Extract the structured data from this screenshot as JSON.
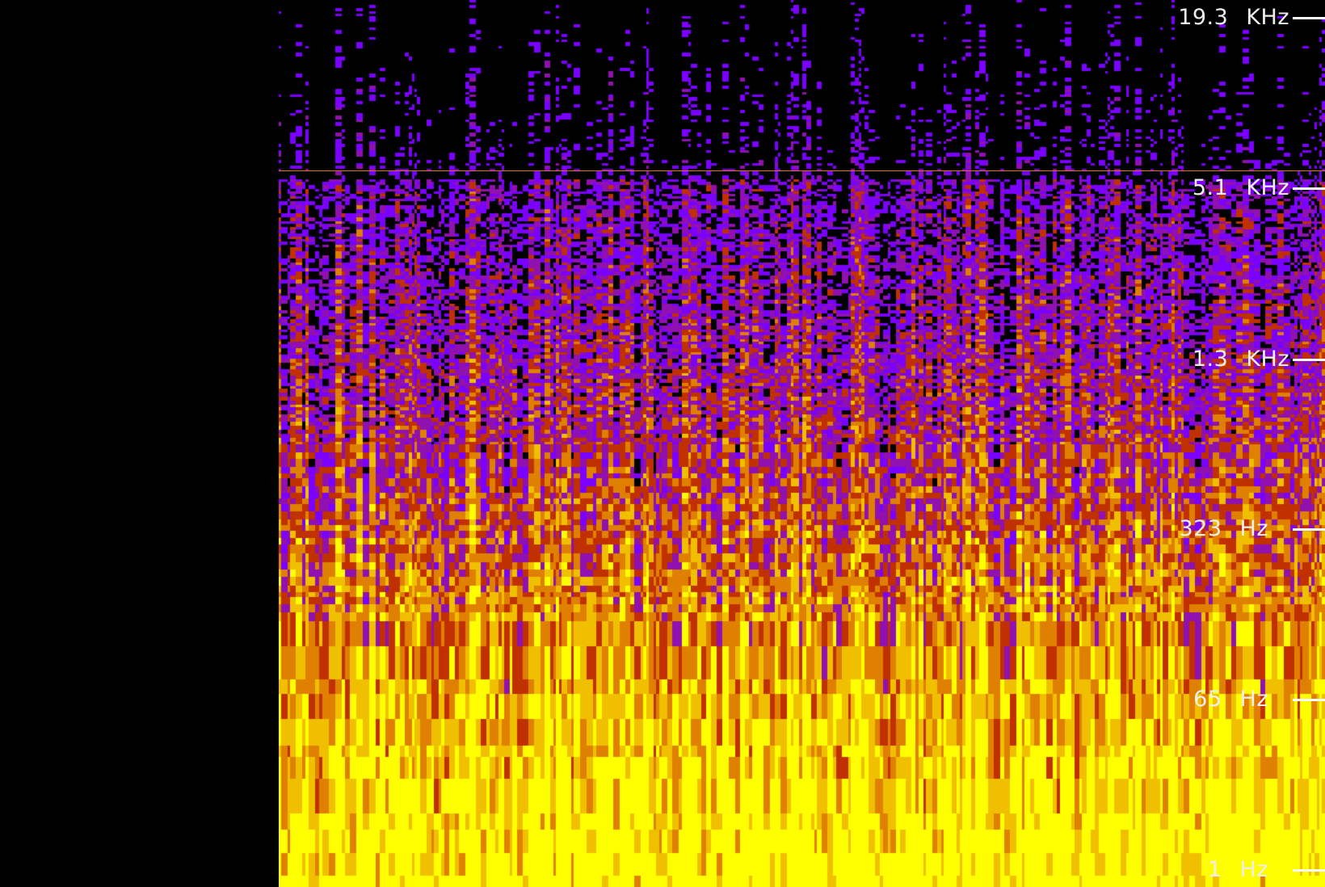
{
  "spectrogram": {
    "colormap": [
      "#000000",
      "#7a00ff",
      "#9010b0",
      "#c03000",
      "#e08000",
      "#f0c000",
      "#ffff00"
    ],
    "marker_color": "#e07010",
    "frequency_axis": [
      {
        "value": "19.3",
        "unit": "KHz"
      },
      {
        "value": "5.1",
        "unit": "KHz"
      },
      {
        "value": "1.3",
        "unit": "KHz"
      },
      {
        "value": "323",
        "unit": "Hz"
      },
      {
        "value": "65",
        "unit": "Hz"
      },
      {
        "value": "1",
        "unit": "Hz"
      }
    ]
  }
}
